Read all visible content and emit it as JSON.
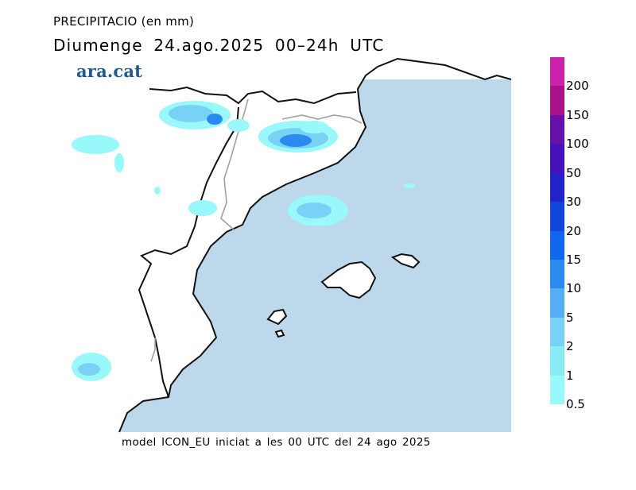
{
  "header": {
    "variable": "PRECIPITACIO (en mm)",
    "date_line": "Diumenge  24.ago.2025  00–24h  UTC"
  },
  "brand": {
    "name": "ara.cat",
    "color": "#1d5a92"
  },
  "footer": {
    "text": "model ICON_EU iniciat a les 00 UTC del 24 ago 2025"
  },
  "map": {
    "sea_color": "#bcd8ea",
    "land_color": "#ffffff",
    "coast_color": "#111111",
    "border_color": "#a0a0a0"
  },
  "legend": {
    "labels": [
      "200",
      "150",
      "100",
      "50",
      "30",
      "20",
      "15",
      "10",
      "5",
      "2",
      "1",
      "0.5"
    ],
    "colors": [
      "#cc22aa",
      "#aa1188",
      "#6611aa",
      "#4411bb",
      "#2222cc",
      "#1144dd",
      "#1166ee",
      "#2a8af0",
      "#55aef5",
      "#77d2f5",
      "#88ecf5",
      "#99f8fa"
    ]
  }
}
